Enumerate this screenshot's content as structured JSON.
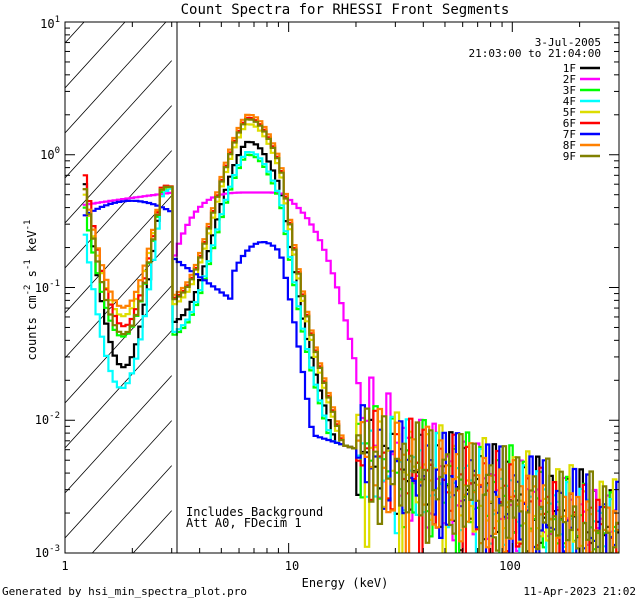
{
  "chart_data": {
    "type": "line",
    "title": "Count Spectra for RHESSI Front Segments",
    "xlabel": "Energy (keV)",
    "ylabel_parts": [
      "counts cm",
      "-2",
      " s",
      "-1",
      " keV",
      "-1"
    ],
    "xscale": "log",
    "yscale": "log",
    "xlim": [
      1,
      300
    ],
    "ylim": [
      0.001,
      10
    ],
    "x_tick_labels": [
      "1",
      "10",
      "100"
    ],
    "y_tick_labels": [
      {
        "base": "10",
        "exp": "-3"
      },
      {
        "base": "10",
        "exp": "-2"
      },
      {
        "base": "10",
        "exp": "-1"
      },
      {
        "base": "10",
        "exp": "0"
      },
      {
        "base": "10",
        "exp": "1"
      }
    ],
    "hatched_region": {
      "x_from": 1,
      "x_to": 3
    },
    "annotations": {
      "date": "3-Jul-2005",
      "time_range": "21:03:00 to 21:04:00",
      "background_note": "Includes Background",
      "attenuator_note": "Att A0, FDecim 1"
    },
    "legend_position": "top-right",
    "series": [
      {
        "name": "1F",
        "color": "#000000",
        "peak": 1.25,
        "peak_shift": 0.0,
        "phase": 0.3
      },
      {
        "name": "2F",
        "color": "#ff00ff",
        "peak": 0.52,
        "peak_shift": -0.05,
        "phase": 1.1
      },
      {
        "name": "3F",
        "color": "#00ff00",
        "peak": 1.0,
        "peak_shift": 0.0,
        "phase": 2.0
      },
      {
        "name": "4F",
        "color": "#00ffff",
        "peak": 1.05,
        "peak_shift": 0.0,
        "phase": 2.7
      },
      {
        "name": "5F",
        "color": "#dddd00",
        "peak": 1.7,
        "peak_shift": 0.0,
        "phase": 3.5
      },
      {
        "name": "6F",
        "color": "#ff0000",
        "peak": 1.9,
        "peak_shift": 0.0,
        "phase": 4.2
      },
      {
        "name": "7F",
        "color": "#0000ff",
        "peak": 0.22,
        "peak_shift": 0.0,
        "phase": 5.0
      },
      {
        "name": "8F",
        "color": "#ff8000",
        "peak": 2.0,
        "peak_shift": 0.0,
        "phase": 5.8
      },
      {
        "name": "9F",
        "color": "#808000",
        "peak": 1.85,
        "peak_shift": 0.0,
        "phase": 6.5
      }
    ]
  },
  "footer": {
    "generator": "Generated by hsi_min_spectra_plot.pro",
    "timestamp": "11-Apr-2023 21:02"
  }
}
